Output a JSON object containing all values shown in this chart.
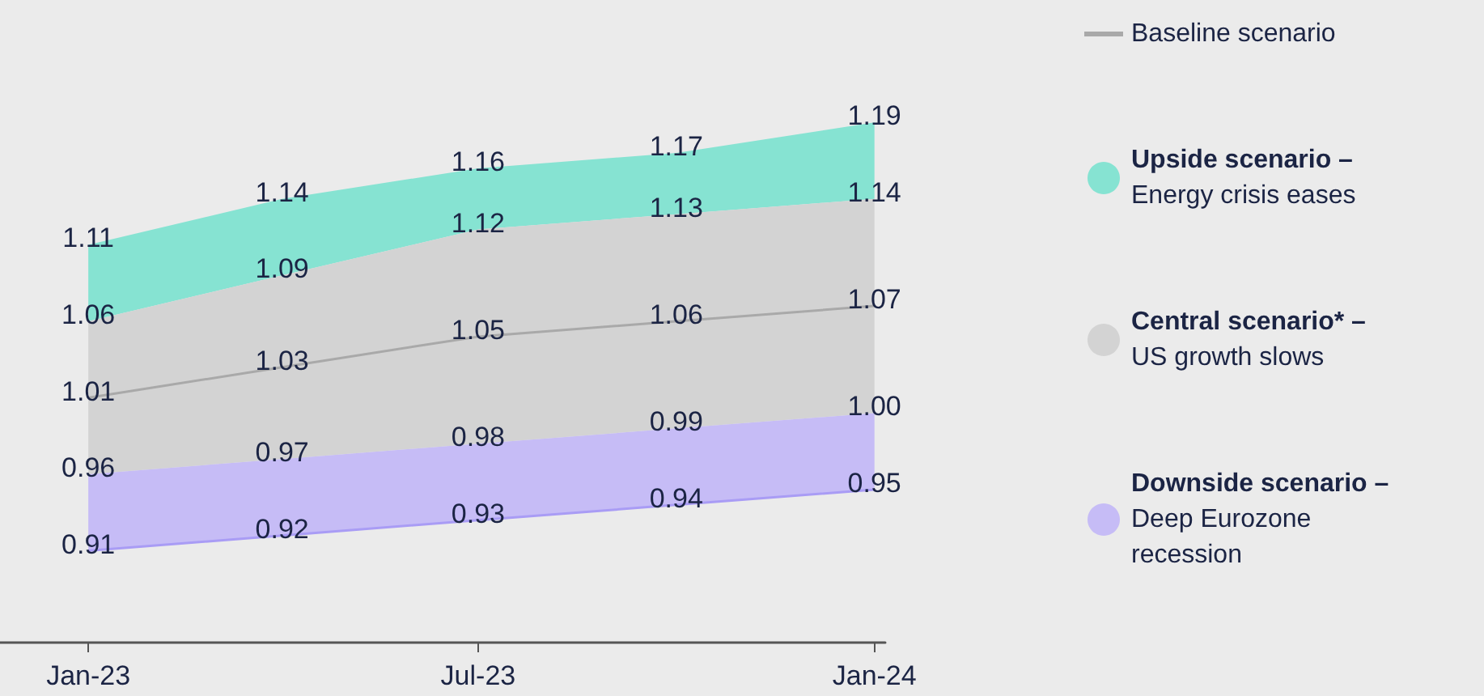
{
  "chart_data": {
    "type": "area",
    "x": [
      "2023-01-01",
      "2023-04-01",
      "2023-07-01",
      "2023-10-01",
      "2024-01-01"
    ],
    "xlim": [
      "2022-11-21",
      "2024-01-06"
    ],
    "xticks": [
      {
        "value": "2023-01-01",
        "label": "Jan-23"
      },
      {
        "value": "2023-07-01",
        "label": "Jul-23"
      },
      {
        "value": "2024-01-01",
        "label": "Jan-24"
      }
    ],
    "ylim": [
      0.85,
      1.27
    ],
    "tick_labels": "x",
    "legend": "right",
    "grid": false,
    "series": [
      {
        "name": "Baseline scenario",
        "type": "line",
        "color": "#a9a9a9",
        "values": [
          1.01,
          1.03,
          1.05,
          1.06,
          1.07
        ],
        "value_labels": [
          "1.01",
          "1.03",
          "1.05",
          "1.06",
          "1.07"
        ]
      },
      {
        "name": "Upside scenario –\nEnergy crisis eases",
        "color": "#86e3d2",
        "values": [
          1.11,
          1.14,
          1.16,
          1.17,
          1.19
        ],
        "value_labels": [
          "1.11",
          "1.14",
          "1.16",
          "1.17",
          "1.19"
        ]
      },
      {
        "name": "Central scenario* –\nUS growth slows",
        "color": "#d3d3d3",
        "values": [
          1.06,
          1.09,
          1.12,
          1.13,
          1.14
        ],
        "value_labels": [
          "1.06",
          "1.09",
          "1.12",
          "1.13",
          "1.14"
        ]
      },
      {
        "name": "Downside scenario –\nDeep Eurozone\nrecession",
        "color": "#c6bcf6",
        "values": [
          0.96,
          0.97,
          0.98,
          0.99,
          1.0
        ],
        "value_labels": [
          "0.96",
          "0.97",
          "0.98",
          "0.99",
          "1.00"
        ]
      },
      {
        "type": "line",
        "color": "#a99cf5",
        "values": [
          0.91,
          0.92,
          0.93,
          0.94,
          0.95
        ],
        "value_labels": [
          "0.91",
          "0.92",
          "0.93",
          "0.94",
          "0.95"
        ]
      }
    ]
  }
}
